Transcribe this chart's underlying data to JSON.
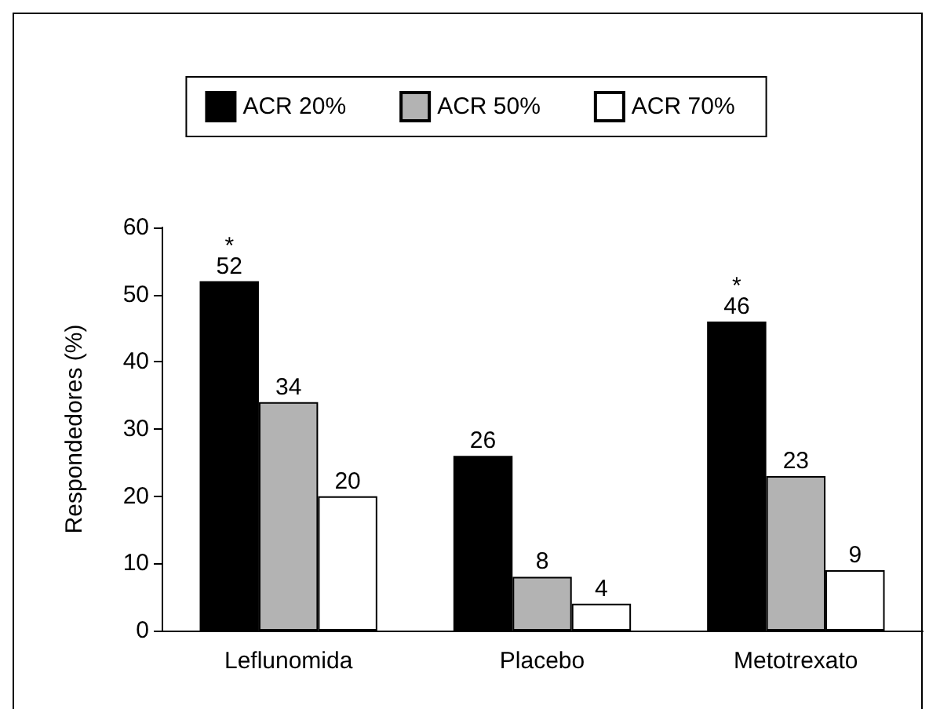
{
  "chart_data": {
    "type": "bar",
    "ylabel": "Respondedores (%)",
    "categories": [
      "Leflunomida",
      "Placebo",
      "Metotrexato"
    ],
    "series": [
      {
        "name": "ACR 20%",
        "color": "#000000",
        "values": [
          52,
          26,
          46
        ],
        "value_labels": [
          "*\n52",
          "26",
          "*\n46"
        ]
      },
      {
        "name": "ACR 50%",
        "color": "#b3b3b3",
        "values": [
          34,
          8,
          23
        ],
        "value_labels": [
          "34",
          "8",
          "23"
        ]
      },
      {
        "name": "ACR 70%",
        "color": "#ffffff",
        "values": [
          20,
          4,
          9
        ],
        "value_labels": [
          "20",
          "4",
          "9"
        ]
      }
    ],
    "ylim": [
      0,
      60
    ],
    "yticks": [
      0,
      10,
      20,
      30,
      40,
      50,
      60
    ],
    "grid": false,
    "legend": "top"
  }
}
